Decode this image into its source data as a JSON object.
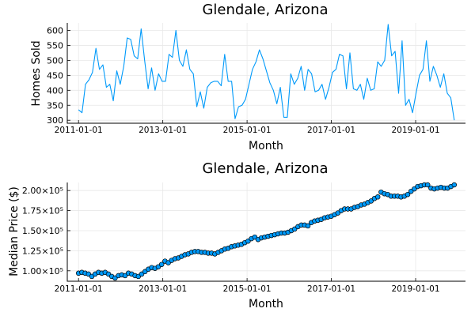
{
  "chart_data": [
    {
      "type": "line",
      "title": "Glendale, Arizona",
      "xlabel": "Month",
      "ylabel": "Homes Sold",
      "x_start": "2011-01-01",
      "x_end": "2019-12-01",
      "xticks": [
        "2011-01-01",
        "2013-01-01",
        "2015-01-01",
        "2017-01-01",
        "2019-01-01"
      ],
      "yticks": [
        300,
        350,
        400,
        450,
        500,
        550,
        600
      ],
      "ytick_labels": [
        "300",
        "350",
        "400",
        "450",
        "500",
        "550",
        "600"
      ],
      "ylim": [
        290,
        625
      ],
      "grid": true,
      "legend": "none",
      "color": "#009AFA",
      "series": [
        {
          "values": [
            335,
            325,
            420,
            435,
            460,
            540,
            470,
            485,
            410,
            420,
            365,
            465,
            420,
            480,
            575,
            570,
            515,
            505,
            605,
            500,
            405,
            475,
            400,
            455,
            430,
            430,
            520,
            510,
            600,
            500,
            480,
            535,
            470,
            455,
            345,
            395,
            340,
            410,
            425,
            430,
            430,
            415,
            520,
            430,
            430,
            305,
            345,
            350,
            370,
            420,
            470,
            495,
            535,
            505,
            465,
            425,
            400,
            355,
            410,
            310,
            310,
            455,
            420,
            440,
            480,
            400,
            470,
            455,
            395,
            400,
            420,
            370,
            410,
            460,
            470,
            520,
            515,
            405,
            525,
            405,
            400,
            420,
            370,
            440,
            400,
            405,
            495,
            480,
            500,
            620,
            515,
            530,
            390,
            565,
            350,
            370,
            325,
            390,
            450,
            470,
            565,
            430,
            480,
            450,
            410,
            455,
            390,
            375,
            300
          ]
        }
      ]
    },
    {
      "type": "scatter",
      "title": "Glendale, Arizona",
      "xlabel": "Month",
      "ylabel": "Median Price ($)",
      "x_start": "2011-01-01",
      "x_end": "2019-12-01",
      "xticks": [
        "2011-01-01",
        "2013-01-01",
        "2015-01-01",
        "2017-01-01",
        "2019-01-01"
      ],
      "yticks": [
        100000,
        125000,
        150000,
        175000,
        200000
      ],
      "ytick_labels": [
        "1.00×10⁵",
        "1.25×10⁵",
        "1.50×10⁵",
        "1.75×10⁵",
        "2.00×10⁵"
      ],
      "ylim": [
        87000,
        210000
      ],
      "grid": true,
      "legend": "none",
      "color": "#009AFA",
      "series": [
        {
          "values": [
            97000,
            98000,
            97000,
            96000,
            93000,
            96000,
            98000,
            97000,
            98000,
            96000,
            93000,
            91000,
            94000,
            95000,
            94000,
            97000,
            96000,
            94000,
            93000,
            96000,
            99000,
            102000,
            104000,
            103000,
            105000,
            108000,
            112000,
            110000,
            113000,
            115000,
            116000,
            118000,
            120000,
            121000,
            123000,
            124000,
            124000,
            123000,
            123000,
            122000,
            122000,
            121000,
            123000,
            125000,
            127000,
            128000,
            130000,
            131000,
            132000,
            133000,
            135000,
            137000,
            140000,
            142000,
            139000,
            141000,
            142000,
            143000,
            144000,
            145000,
            146000,
            147000,
            147000,
            148000,
            150000,
            152000,
            155000,
            157000,
            157000,
            156000,
            160000,
            162000,
            163000,
            164000,
            166000,
            167000,
            168000,
            170000,
            172000,
            175000,
            177000,
            177000,
            177000,
            179000,
            180000,
            182000,
            183000,
            185000,
            187000,
            190000,
            192000,
            198000,
            196000,
            195000,
            193000,
            193000,
            193000,
            192000,
            193000,
            195000,
            199000,
            202000,
            205000,
            206000,
            207000,
            207000,
            203000,
            202000,
            203000,
            204000,
            203000,
            203000,
            205000,
            207000
          ]
        }
      ]
    }
  ]
}
